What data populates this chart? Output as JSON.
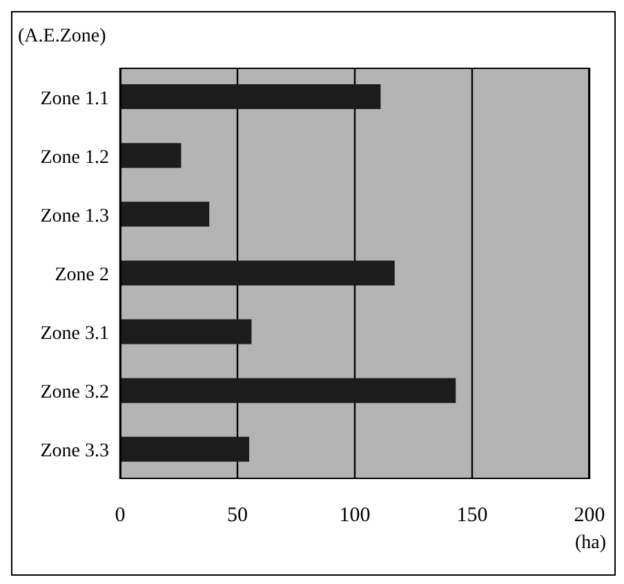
{
  "chart_data": {
    "type": "bar",
    "orientation": "horizontal",
    "ylabel": "(A.E.Zone)",
    "xlabel": "(ha)",
    "categories": [
      "Zone 1.1",
      "Zone 1.2",
      "Zone 1.3",
      "Zone 2",
      "Zone 3.1",
      "Zone 3.2",
      "Zone 3.3"
    ],
    "values": [
      111,
      26,
      38,
      117,
      56,
      143,
      55
    ],
    "color": "#1c1c1c",
    "xlim": [
      0,
      200
    ],
    "xticks": [
      0,
      50,
      100,
      150,
      200
    ],
    "grid": "x"
  }
}
